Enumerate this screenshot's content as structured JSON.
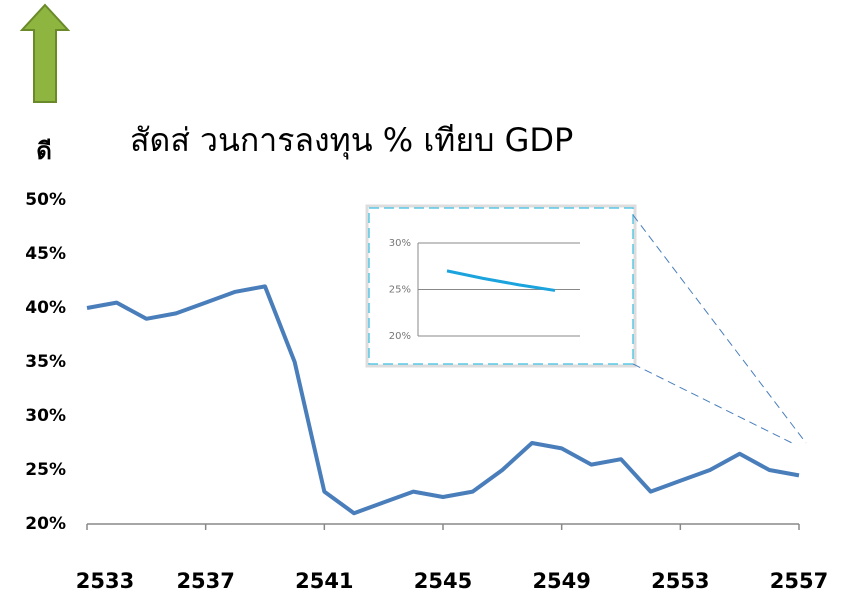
{
  "label": "ดี",
  "chart_data": [
    {
      "type": "line",
      "title": "สัดส่ วนการลงทุน % เทียบ   GDP",
      "x": [
        2533,
        2534,
        2535,
        2536,
        2537,
        2538,
        2539,
        2540,
        2541,
        2542,
        2543,
        2544,
        2545,
        2546,
        2547,
        2548,
        2549,
        2550,
        2551,
        2552,
        2553,
        2554,
        2555,
        2556,
        2557
      ],
      "values": [
        40,
        40.5,
        39,
        39.5,
        40.5,
        41.5,
        42,
        35,
        23,
        21,
        22,
        23,
        22.5,
        23,
        25,
        27.5,
        27,
        25.5,
        26,
        23,
        24,
        25,
        26.5,
        25,
        24.5
      ],
      "color": "#4a7ebb",
      "xlim": [
        2533,
        2557
      ],
      "xticks": [
        2533,
        2537,
        2541,
        2545,
        2549,
        2553,
        2557
      ],
      "ylim": [
        20,
        50
      ],
      "yticks": [
        {
          "value": 20,
          "label": "20%"
        },
        {
          "value": 25,
          "label": "25%"
        },
        {
          "value": 30,
          "label": "30%"
        },
        {
          "value": 35,
          "label": "35%"
        },
        {
          "value": 40,
          "label": "40%"
        },
        {
          "value": 45,
          "label": "45%"
        },
        {
          "value": 50,
          "label": "50%"
        }
      ]
    },
    {
      "type": "line",
      "categories": [
        null,
        null,
        null,
        null
      ],
      "values": [
        27,
        26.2,
        25.5,
        24.9
      ],
      "color": "#1aa3dd",
      "ylim": [
        20,
        30
      ],
      "yticks": [
        {
          "value": 20,
          "label": "20%"
        },
        {
          "value": 25,
          "label": "25%"
        },
        {
          "value": 30,
          "label": "30%"
        }
      ],
      "grid": true
    }
  ]
}
